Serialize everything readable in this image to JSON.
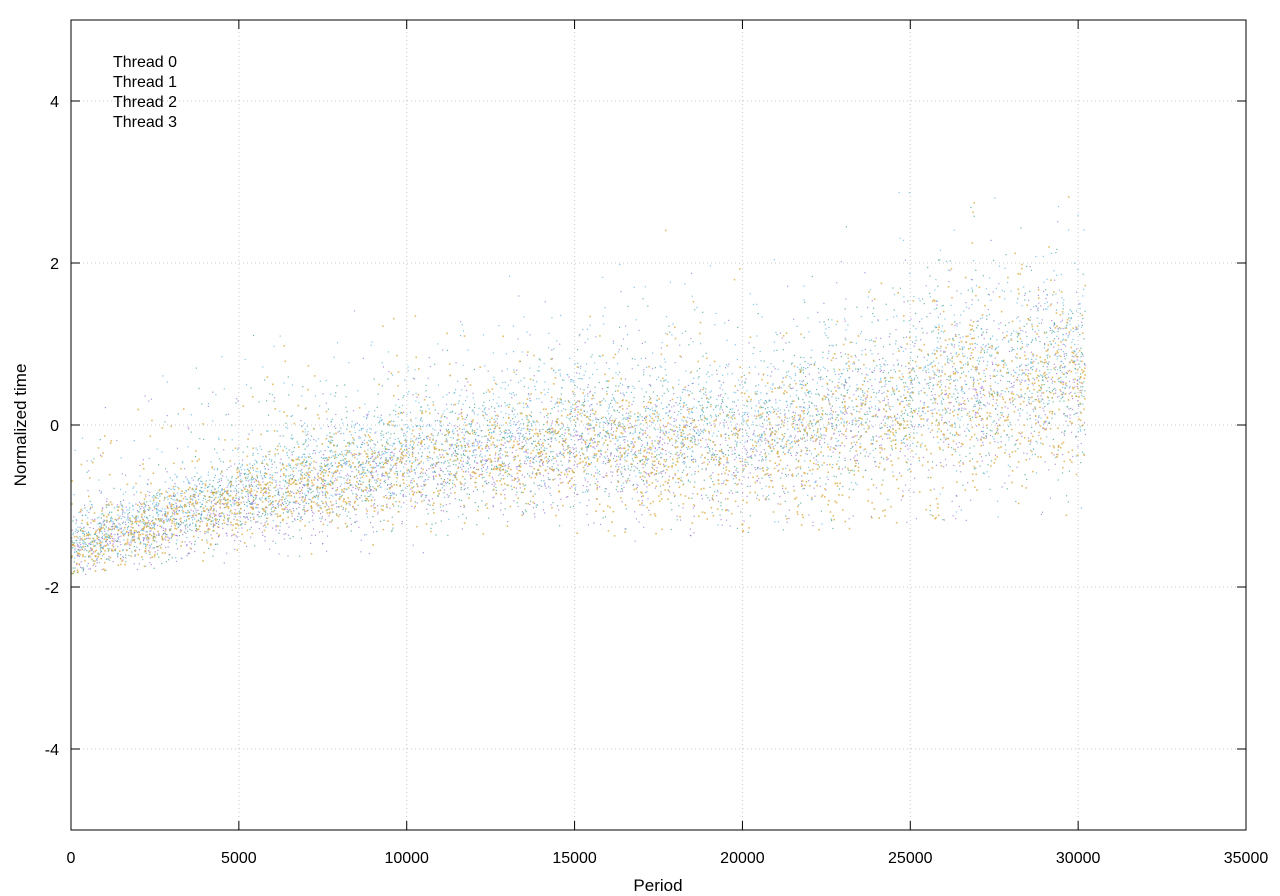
{
  "chart_data": {
    "type": "scatter",
    "title": "",
    "xlabel": "Period",
    "ylabel": "Normalized time",
    "xlim": [
      0,
      35000
    ],
    "ylim": [
      -5,
      5
    ],
    "xticks": [
      0,
      5000,
      10000,
      15000,
      20000,
      25000,
      30000,
      35000
    ],
    "yticks": [
      -4,
      -2,
      0,
      2,
      4
    ],
    "grid": true,
    "legend_position": "top-left",
    "series": [
      {
        "name": "Thread 0",
        "color": "#9b6fd0",
        "trend": {
          "x": [
            0,
            5000,
            10000,
            15000,
            20000,
            25000,
            30000,
            30200
          ],
          "y": [
            -1.5,
            -1.0,
            -0.6,
            -0.3,
            -0.3,
            0.2,
            0.5,
            0.5
          ]
        }
      },
      {
        "name": "Thread 1",
        "color": "#3fa08a",
        "trend": {
          "x": [
            0,
            5000,
            10000,
            15000,
            20000,
            25000,
            30000,
            30200
          ],
          "y": [
            -1.5,
            -0.9,
            -0.5,
            -0.2,
            -0.2,
            0.3,
            0.6,
            0.6
          ]
        }
      },
      {
        "name": "Thread 2",
        "color": "#5ab4e0",
        "trend": {
          "x": [
            0,
            5000,
            10000,
            15000,
            20000,
            25000,
            30000,
            30200
          ],
          "y": [
            -1.4,
            -0.7,
            -0.3,
            0.1,
            0.0,
            0.6,
            0.9,
            1.0
          ]
        }
      },
      {
        "name": "Thread 3",
        "color": "#d9a83a",
        "trend": {
          "x": [
            0,
            5000,
            10000,
            15000,
            20000,
            25000,
            30000,
            30200
          ],
          "y": [
            -1.5,
            -0.9,
            -0.5,
            -0.2,
            -0.4,
            0.2,
            0.5,
            0.6
          ]
        }
      }
    ]
  }
}
